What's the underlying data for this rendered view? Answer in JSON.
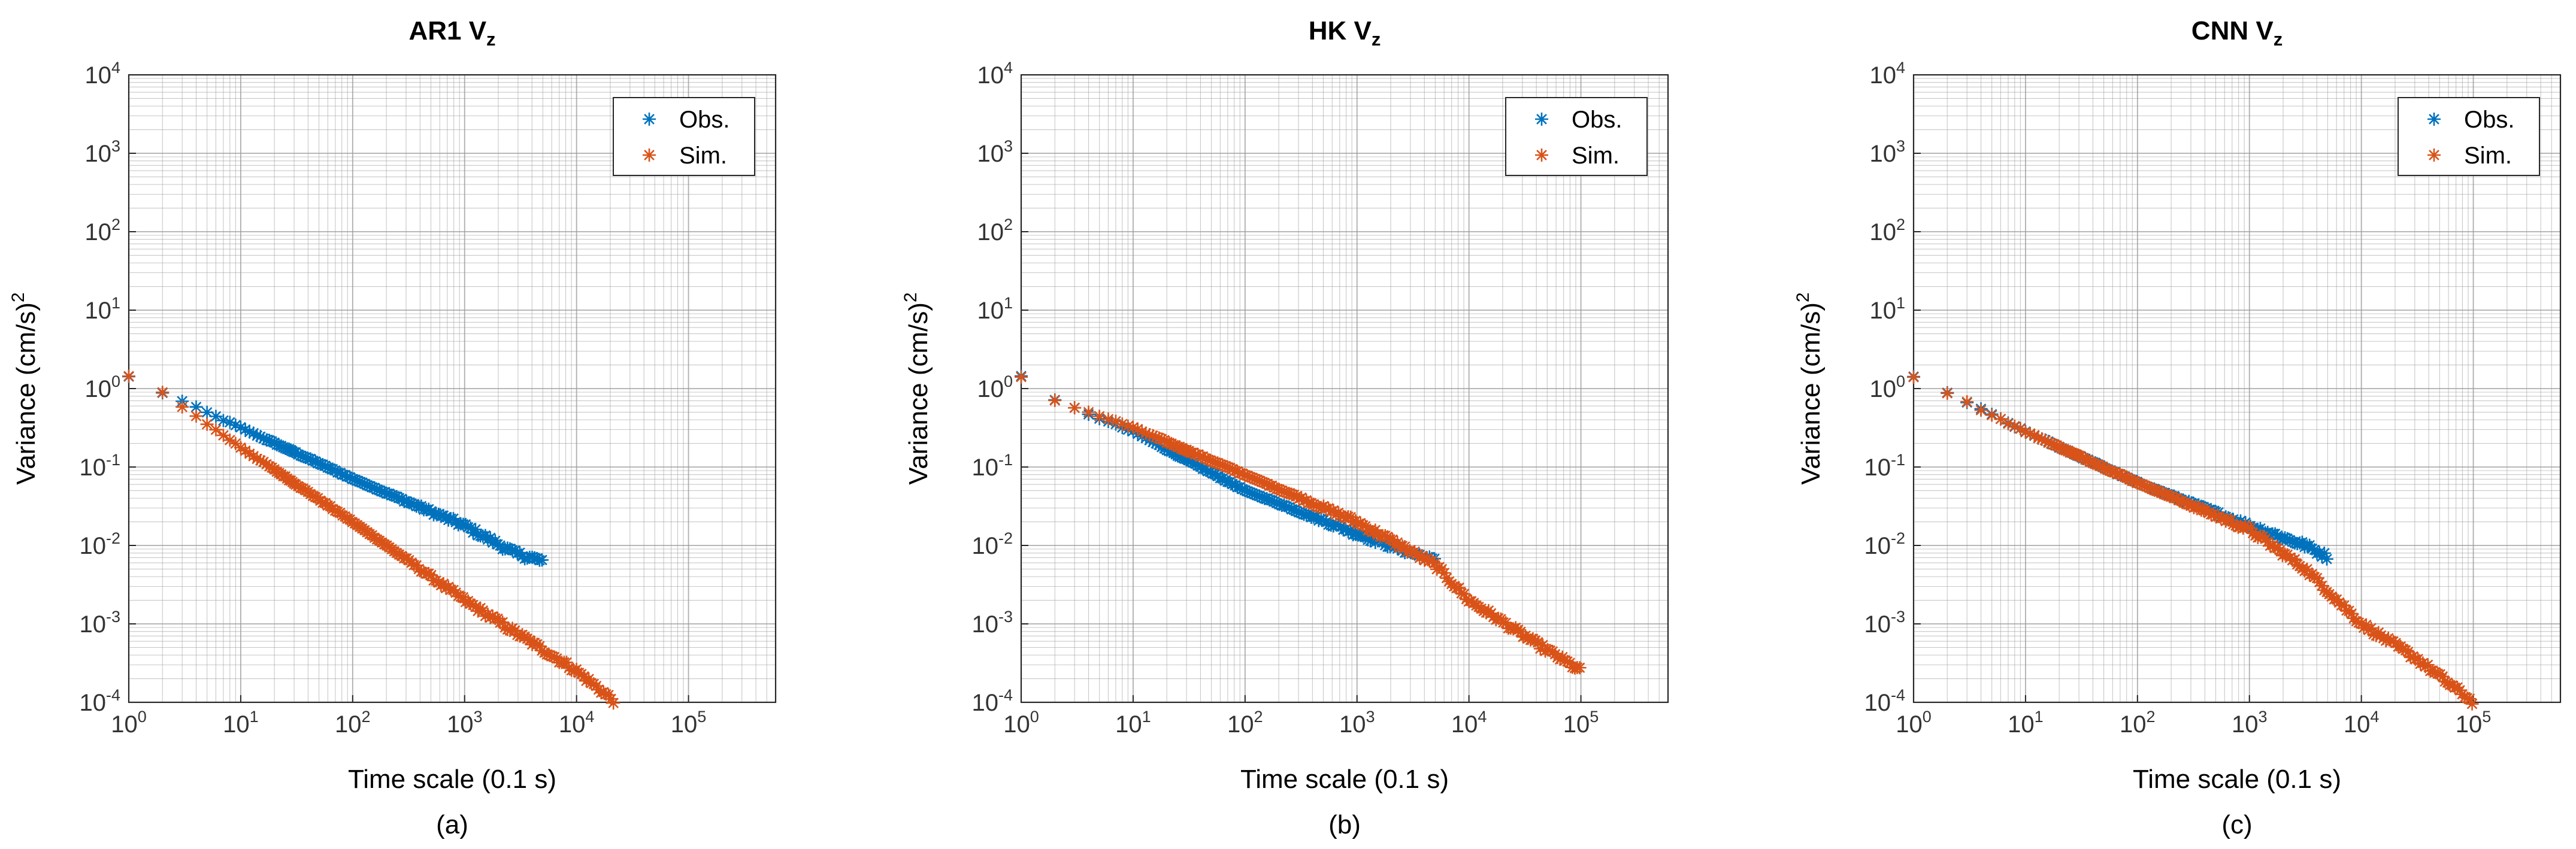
{
  "colors": {
    "obs": "#0072BD",
    "sim": "#D95319",
    "grid": "#9a9a9a",
    "axis": "#262626"
  },
  "chart_data": [
    {
      "type": "scatter",
      "panel": "a",
      "caption": "(a)",
      "title": {
        "main": "AR1 V",
        "subscript": "z"
      },
      "xlabel": "Time scale (0.1 s)",
      "ylabel": {
        "main": "Variance (cm/s)",
        "superscript": "2"
      },
      "xscale": "log",
      "yscale": "log",
      "xlim": [
        1,
        600000
      ],
      "ylim": [
        0.0001,
        10000
      ],
      "xticks": [
        {
          "base": "10",
          "exp": "0"
        },
        {
          "base": "10",
          "exp": "1"
        },
        {
          "base": "10",
          "exp": "2"
        },
        {
          "base": "10",
          "exp": "3"
        },
        {
          "base": "10",
          "exp": "4"
        },
        {
          "base": "10",
          "exp": "5"
        }
      ],
      "yticks": [
        {
          "base": "10",
          "exp": "-4"
        },
        {
          "base": "10",
          "exp": "-3"
        },
        {
          "base": "10",
          "exp": "-2"
        },
        {
          "base": "10",
          "exp": "-1"
        },
        {
          "base": "10",
          "exp": "0"
        },
        {
          "base": "10",
          "exp": "1"
        },
        {
          "base": "10",
          "exp": "2"
        },
        {
          "base": "10",
          "exp": "3"
        },
        {
          "base": "10",
          "exp": "4"
        }
      ],
      "grid": true,
      "legend": {
        "position": "top-right",
        "entries": [
          "Obs.",
          "Sim."
        ]
      },
      "series": [
        {
          "name": "Obs.",
          "marker": "*",
          "log_profile": [
            [
              0,
              0.15
            ],
            [
              0.3,
              -0.05
            ],
            [
              1,
              -0.5
            ],
            [
              2,
              -1.15
            ],
            [
              3,
              -1.75
            ],
            [
              3.45,
              -2.1
            ],
            [
              3.7,
              -2.2
            ]
          ]
        },
        {
          "name": "Sim.",
          "marker": "*",
          "log_profile": [
            [
              0,
              0.15
            ],
            [
              0.3,
              -0.05
            ],
            [
              1,
              -0.75
            ],
            [
              2,
              -1.7
            ],
            [
              3,
              -2.7
            ],
            [
              4,
              -3.6
            ],
            [
              4.35,
              -4.0
            ]
          ]
        }
      ]
    },
    {
      "type": "scatter",
      "panel": "b",
      "caption": "(b)",
      "title": {
        "main": "HK V",
        "subscript": "z"
      },
      "xlabel": "Time scale (0.1 s)",
      "ylabel": {
        "main": "Variance (cm/s)",
        "superscript": "2"
      },
      "xscale": "log",
      "yscale": "log",
      "xlim": [
        1,
        600000
      ],
      "ylim": [
        0.0001,
        10000
      ],
      "xticks": [
        {
          "base": "10",
          "exp": "0"
        },
        {
          "base": "10",
          "exp": "1"
        },
        {
          "base": "10",
          "exp": "2"
        },
        {
          "base": "10",
          "exp": "3"
        },
        {
          "base": "10",
          "exp": "4"
        },
        {
          "base": "10",
          "exp": "5"
        }
      ],
      "yticks": [
        {
          "base": "10",
          "exp": "-4"
        },
        {
          "base": "10",
          "exp": "-3"
        },
        {
          "base": "10",
          "exp": "-2"
        },
        {
          "base": "10",
          "exp": "-1"
        },
        {
          "base": "10",
          "exp": "0"
        },
        {
          "base": "10",
          "exp": "1"
        },
        {
          "base": "10",
          "exp": "2"
        },
        {
          "base": "10",
          "exp": "3"
        },
        {
          "base": "10",
          "exp": "4"
        }
      ],
      "grid": true,
      "legend": {
        "position": "top-right",
        "entries": [
          "Obs.",
          "Sim."
        ]
      },
      "series": [
        {
          "name": "Obs.",
          "marker": "*",
          "log_profile": [
            [
              0,
              0.15
            ],
            [
              0.3,
              -0.15
            ],
            [
              1,
              -0.55
            ],
            [
              2,
              -1.3
            ],
            [
              3,
              -1.85
            ],
            [
              3.7,
              -2.2
            ]
          ]
        },
        {
          "name": "Sim.",
          "marker": "*",
          "log_profile": [
            [
              0,
              0.15
            ],
            [
              0.3,
              -0.15
            ],
            [
              1,
              -0.5
            ],
            [
              2,
              -1.1
            ],
            [
              3,
              -1.7
            ],
            [
              3.7,
              -2.25
            ],
            [
              4,
              -2.7
            ],
            [
              4.6,
              -3.25
            ],
            [
              5,
              -3.6
            ]
          ]
        }
      ]
    },
    {
      "type": "scatter",
      "panel": "c",
      "caption": "(c)",
      "title": {
        "main": "CNN V",
        "subscript": "z"
      },
      "xlabel": "Time scale (0.1 s)",
      "ylabel": {
        "main": "Variance (cm/s)",
        "superscript": "2"
      },
      "xscale": "log",
      "yscale": "log",
      "xlim": [
        1,
        600000
      ],
      "ylim": [
        0.0001,
        10000
      ],
      "xticks": [
        {
          "base": "10",
          "exp": "0"
        },
        {
          "base": "10",
          "exp": "1"
        },
        {
          "base": "10",
          "exp": "2"
        },
        {
          "base": "10",
          "exp": "3"
        },
        {
          "base": "10",
          "exp": "4"
        },
        {
          "base": "10",
          "exp": "5"
        }
      ],
      "yticks": [
        {
          "base": "10",
          "exp": "-4"
        },
        {
          "base": "10",
          "exp": "-3"
        },
        {
          "base": "10",
          "exp": "-2"
        },
        {
          "base": "10",
          "exp": "-1"
        },
        {
          "base": "10",
          "exp": "0"
        },
        {
          "base": "10",
          "exp": "1"
        },
        {
          "base": "10",
          "exp": "2"
        },
        {
          "base": "10",
          "exp": "3"
        },
        {
          "base": "10",
          "exp": "4"
        }
      ],
      "grid": true,
      "legend": {
        "position": "top-right",
        "entries": [
          "Obs.",
          "Sim."
        ]
      },
      "series": [
        {
          "name": "Obs.",
          "marker": "*",
          "log_profile": [
            [
              0,
              0.15
            ],
            [
              0.3,
              -0.05
            ],
            [
              1,
              -0.55
            ],
            [
              2,
              -1.2
            ],
            [
              3,
              -1.75
            ],
            [
              3.5,
              -2.0
            ],
            [
              3.7,
              -2.15
            ]
          ]
        },
        {
          "name": "Sim.",
          "marker": "*",
          "log_profile": [
            [
              0,
              0.15
            ],
            [
              0.3,
              -0.05
            ],
            [
              1,
              -0.55
            ],
            [
              2,
              -1.2
            ],
            [
              3,
              -1.8
            ],
            [
              3.5,
              -2.3
            ],
            [
              4,
              -3.0
            ],
            [
              4.5,
              -3.45
            ],
            [
              5,
              -4.0
            ]
          ]
        }
      ]
    }
  ]
}
